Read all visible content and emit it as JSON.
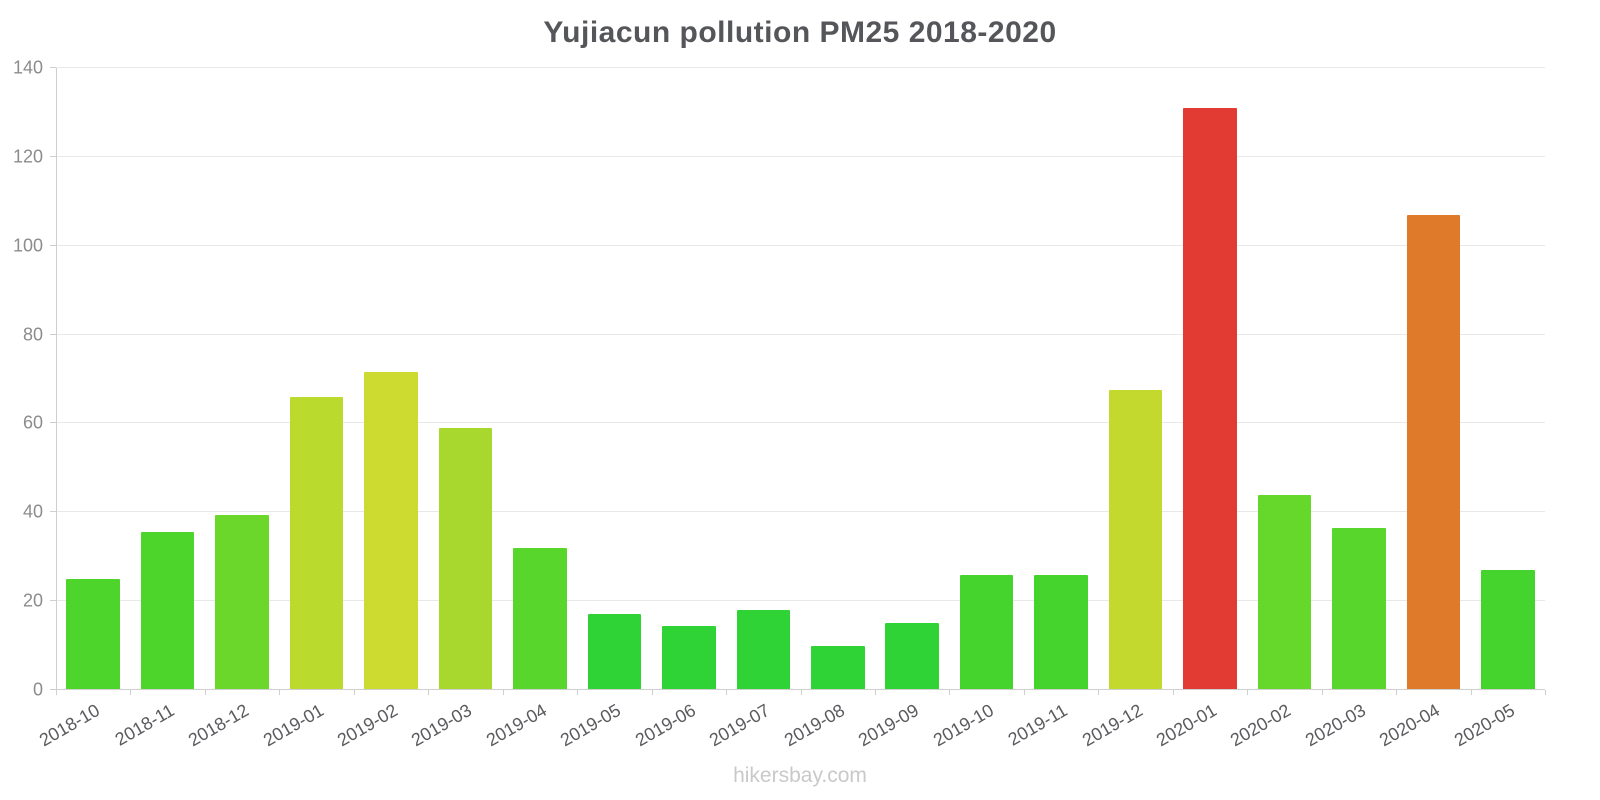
{
  "page": {
    "footer": "hikersbay.com"
  },
  "chart_data": {
    "type": "bar",
    "title": "Yujiacun pollution PM25 2018-2020",
    "xlabel": "",
    "ylabel": "",
    "grid": "horizontal",
    "legend": "none",
    "ylim": [
      0,
      140
    ],
    "yticks": [
      0,
      20,
      40,
      60,
      80,
      100,
      120,
      140
    ],
    "categories": [
      "2018-10",
      "2018-11",
      "2018-12",
      "2019-01",
      "2019-02",
      "2019-03",
      "2019-04",
      "2019-05",
      "2019-06",
      "2019-07",
      "2019-08",
      "2019-09",
      "2019-10",
      "2019-11",
      "2019-12",
      "2020-01",
      "2020-02",
      "2020-03",
      "2020-04",
      "2020-05"
    ],
    "values": [
      25,
      35.5,
      39.5,
      66,
      71.5,
      59,
      32,
      17,
      14.5,
      18,
      10,
      15,
      26,
      26,
      67.5,
      131,
      44,
      36.5,
      107,
      27
    ],
    "bar_colors": [
      "#4ed52b",
      "#4ed52b",
      "#6cd72b",
      "#bada2d",
      "#cdda2f",
      "#a8d82d",
      "#59d62b",
      "#30d335",
      "#30d335",
      "#30d335",
      "#30d335",
      "#30d335",
      "#45d42d",
      "#45d42d",
      "#c3d92e",
      "#e23b33",
      "#66d72b",
      "#59d62b",
      "#de7a2a",
      "#45d42d"
    ]
  }
}
